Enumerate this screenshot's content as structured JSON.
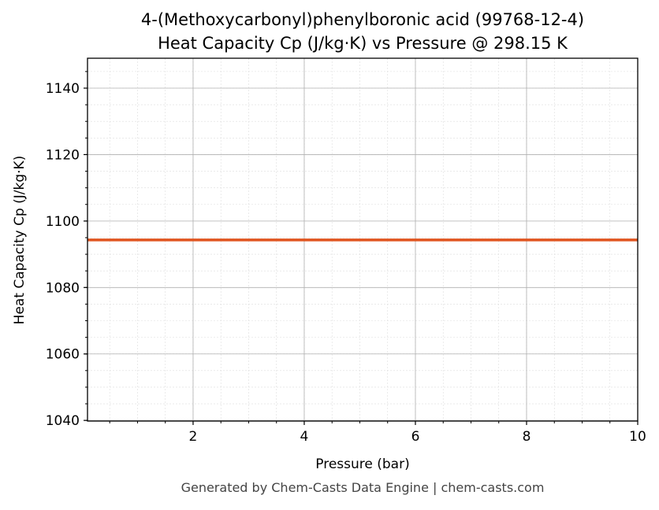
{
  "chart_data": {
    "type": "line",
    "title": "4-(Methoxycarbonyl)phenylboronic acid (99768-12-4)",
    "subtitle": "Heat Capacity Cp (J/kg·K) vs Pressure @ 298.15 K",
    "xlabel": "Pressure (bar)",
    "ylabel": "Heat Capacity Cp (J/kg·K)",
    "xlim": [
      0.1,
      10
    ],
    "ylim": [
      1039.8,
      1149
    ],
    "xticks": [
      2,
      4,
      6,
      8,
      10
    ],
    "yticks": [
      1040,
      1060,
      1080,
      1100,
      1120,
      1140
    ],
    "grid": true,
    "series": [
      {
        "x": [
          0.1,
          10
        ],
        "y": [
          1094.3,
          1094.3
        ],
        "color": "#e0541f"
      }
    ]
  },
  "footer": "Generated by Chem-Casts Data Engine | chem-casts.com"
}
